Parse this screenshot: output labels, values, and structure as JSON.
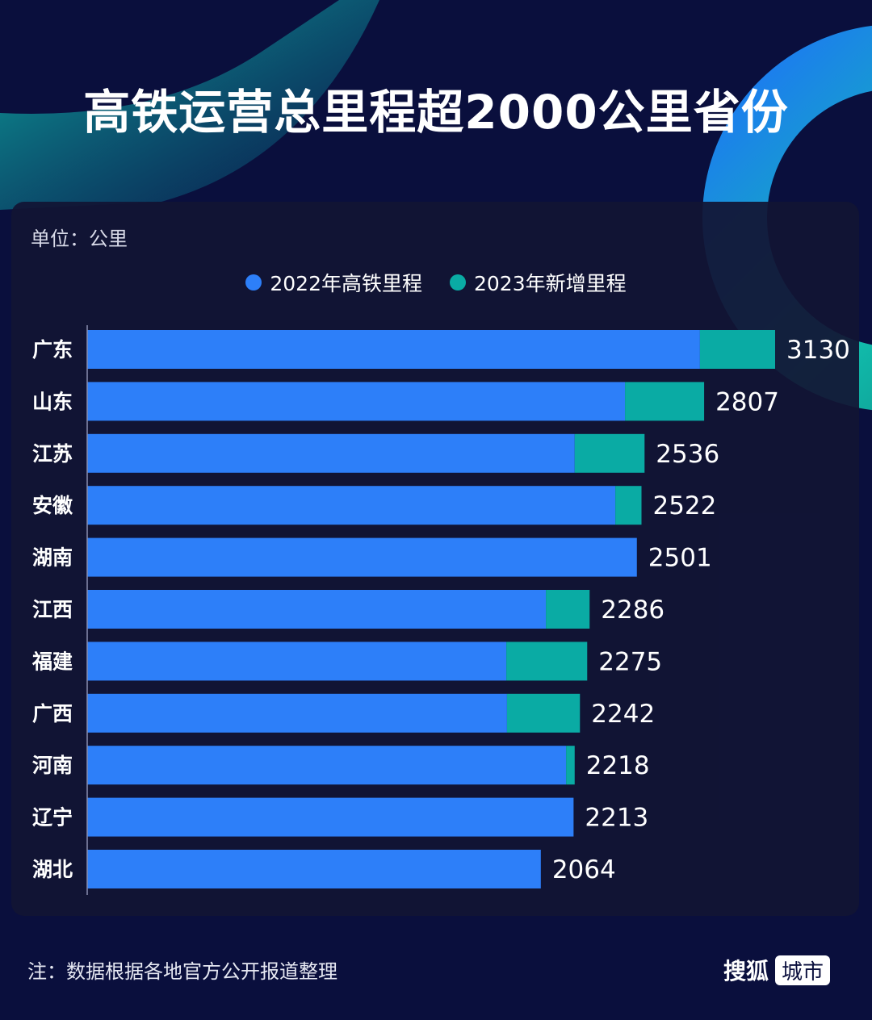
{
  "title": "高铁运营总里程超2000公里省份",
  "unit_label": "单位：公里",
  "note": "注：数据根据各地官方公开报道整理",
  "logo": {
    "brand": "搜狐",
    "tag": "城市"
  },
  "colors": {
    "background": "#0a0f3d",
    "series_2022": "#2d7ff9",
    "series_2023": "#0aaba4"
  },
  "chart_data": {
    "type": "bar",
    "orientation": "horizontal",
    "stacked": true,
    "title": "高铁运营总里程超2000公里省份",
    "xlabel": "",
    "ylabel": "",
    "unit": "公里",
    "xlim": [
      0,
      3130
    ],
    "grid": false,
    "legend": "top",
    "categories": [
      "广东",
      "山东",
      "江苏",
      "安徽",
      "湖南",
      "江西",
      "福建",
      "广西",
      "河南",
      "辽宁",
      "湖北"
    ],
    "series": [
      {
        "name": "2022年高铁里程",
        "color": "#2d7ff9",
        "values": [
          2788,
          2447,
          2218,
          2403,
          2501,
          2087,
          1907,
          1910,
          2179,
          2213,
          2064
        ]
      },
      {
        "name": "2023年新增里程",
        "color": "#0aaba4",
        "values": [
          342,
          360,
          318,
          119,
          0,
          199,
          368,
          332,
          39,
          0,
          0
        ]
      }
    ],
    "totals": [
      "3130",
      "2807",
      "2536",
      "2522",
      "2501",
      "2286",
      "2275",
      "2242",
      "2218",
      "2213",
      "2064"
    ]
  }
}
